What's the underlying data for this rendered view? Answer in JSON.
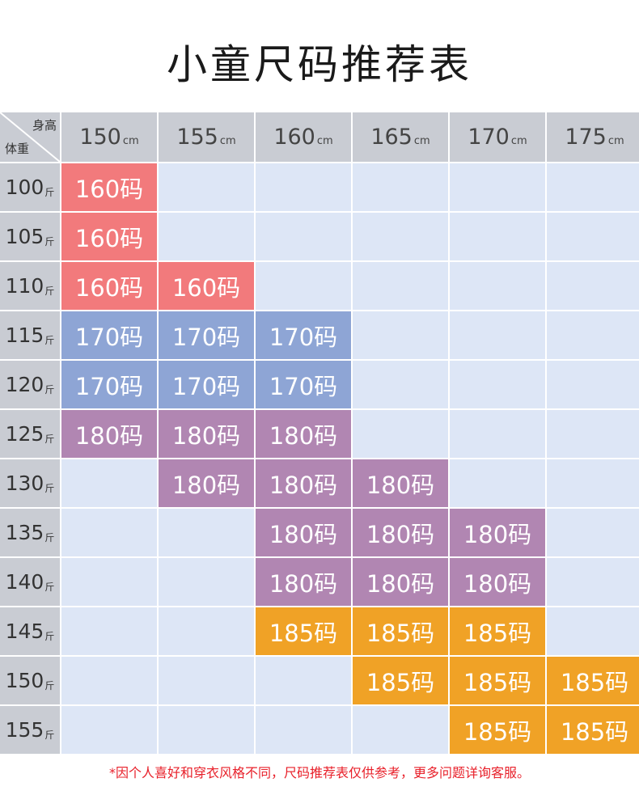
{
  "title": "小童尺码推荐表",
  "corner": {
    "height_label": "身高",
    "weight_label": "体重"
  },
  "heights": [
    {
      "value": "150",
      "unit": "cm"
    },
    {
      "value": "155",
      "unit": "cm"
    },
    {
      "value": "160",
      "unit": "cm"
    },
    {
      "value": "165",
      "unit": "cm"
    },
    {
      "value": "170",
      "unit": "cm"
    },
    {
      "value": "175",
      "unit": "cm"
    }
  ],
  "weight_unit": "斤",
  "rows": [
    {
      "weight": "100",
      "cells": [
        "160码",
        "",
        "",
        "",
        "",
        ""
      ]
    },
    {
      "weight": "105",
      "cells": [
        "160码",
        "",
        "",
        "",
        "",
        ""
      ]
    },
    {
      "weight": "110",
      "cells": [
        "160码",
        "160码",
        "",
        "",
        "",
        ""
      ]
    },
    {
      "weight": "115",
      "cells": [
        "170码",
        "170码",
        "170码",
        "",
        "",
        ""
      ]
    },
    {
      "weight": "120",
      "cells": [
        "170码",
        "170码",
        "170码",
        "",
        "",
        ""
      ]
    },
    {
      "weight": "125",
      "cells": [
        "180码",
        "180码",
        "180码",
        "",
        "",
        ""
      ]
    },
    {
      "weight": "130",
      "cells": [
        "",
        "180码",
        "180码",
        "180码",
        "",
        ""
      ]
    },
    {
      "weight": "135",
      "cells": [
        "",
        "",
        "180码",
        "180码",
        "180码",
        ""
      ]
    },
    {
      "weight": "140",
      "cells": [
        "",
        "",
        "180码",
        "180码",
        "180码",
        ""
      ]
    },
    {
      "weight": "145",
      "cells": [
        "",
        "",
        "185码",
        "185码",
        "185码",
        ""
      ]
    },
    {
      "weight": "150",
      "cells": [
        "",
        "",
        "",
        "185码",
        "185码",
        "185码"
      ]
    },
    {
      "weight": "155",
      "cells": [
        "",
        "",
        "",
        "",
        "185码",
        "185码"
      ]
    }
  ],
  "size_colors": {
    "160码": "#f27a7c",
    "170码": "#8ea5d5",
    "180码": "#b186b2",
    "185码": "#f0a226"
  },
  "empty_cell_color": "#dde6f6",
  "note": "*因个人喜好和穿衣风格不同，尺码推荐表仅供参考，更多问题详询客服。"
}
